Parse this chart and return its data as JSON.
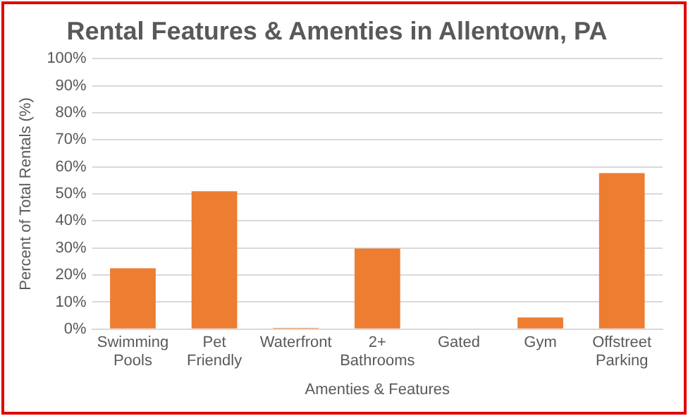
{
  "chart_data": {
    "type": "bar",
    "title": "Rental Features & Amenties in Allentown, PA",
    "xlabel": "Amenties & Features",
    "ylabel": "Percent of Total Rentals (%)",
    "categories": [
      "Swimming Pools",
      "Pet Friendly",
      "Waterfront",
      "2+ Bathrooms",
      "Gated",
      "Gym",
      "Offstreet Parking"
    ],
    "values": [
      22.5,
      51,
      0.5,
      29.8,
      0,
      4.3,
      57.7
    ],
    "color": "#ed7d31",
    "ylim": [
      0,
      100
    ],
    "yticks": [
      {
        "value": 0,
        "label": "0%"
      },
      {
        "value": 10,
        "label": "10%"
      },
      {
        "value": 20,
        "label": "20%"
      },
      {
        "value": 30,
        "label": "30%"
      },
      {
        "value": 40,
        "label": "40%"
      },
      {
        "value": 50,
        "label": "50%"
      },
      {
        "value": 60,
        "label": "60%"
      },
      {
        "value": 70,
        "label": "70%"
      },
      {
        "value": 80,
        "label": "80%"
      },
      {
        "value": 90,
        "label": "90%"
      },
      {
        "value": 100,
        "label": "100%"
      }
    ],
    "grid": "y",
    "legend": false
  }
}
